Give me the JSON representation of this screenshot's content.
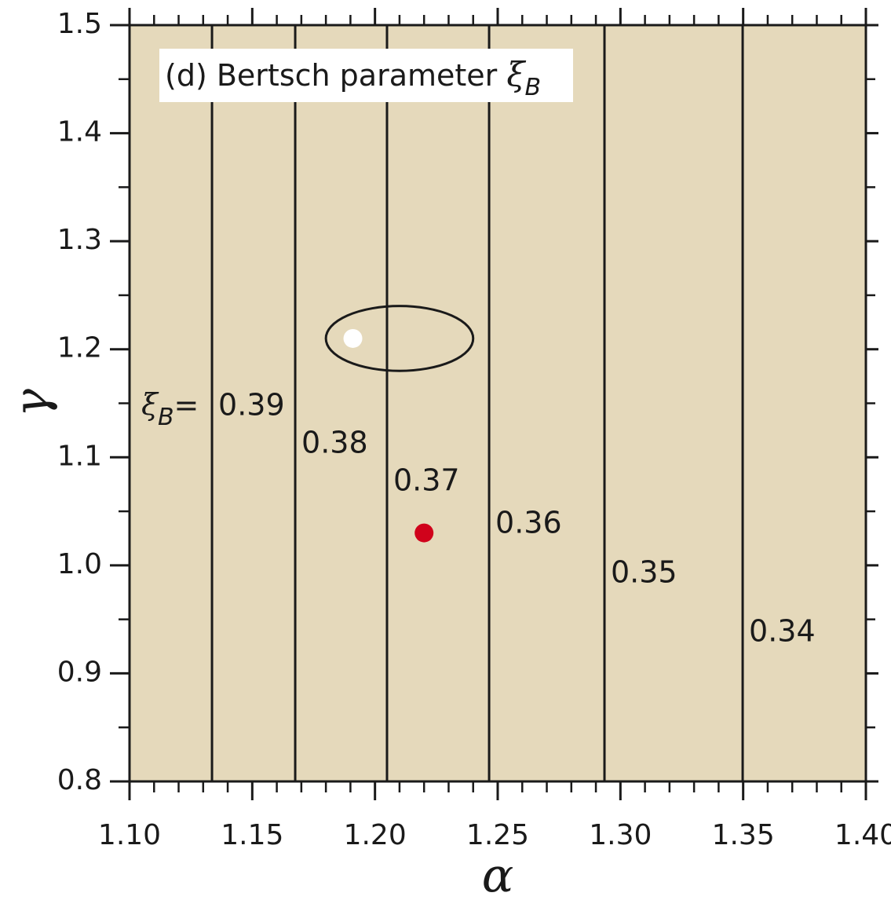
{
  "chart_data": {
    "type": "contour",
    "title": "(d) Bertsch parameter ",
    "title_symbol": "ξ",
    "title_subscript": "B",
    "xlabel": "α",
    "ylabel": "γ",
    "contour_prefix": {
      "symbol": "ξ",
      "subscript": "B",
      "eq": "="
    },
    "background": "#e5d9bb",
    "line_color": "#1a1a1a",
    "xlim": [
      1.1,
      1.4
    ],
    "ylim": [
      0.8,
      1.5
    ],
    "xticks": [
      {
        "value": 1.1,
        "label": "1.10"
      },
      1.15,
      {
        "value": 1.2,
        "label": "1.20"
      },
      1.25,
      {
        "value": 1.3,
        "label": "1.30"
      },
      1.35,
      {
        "value": 1.4,
        "label": "1.40"
      }
    ],
    "yticks": [
      0.8,
      0.9,
      {
        "value": 1,
        "label": "1.0"
      },
      1.1,
      1.2,
      1.3,
      1.4,
      1.5
    ],
    "contours": [
      {
        "level": 0.39,
        "alpha": 1.1336
      },
      {
        "level": 0.38,
        "alpha": 1.1675
      },
      {
        "level": 0.37,
        "alpha": 1.2049
      },
      {
        "level": 0.36,
        "alpha": 1.2465
      },
      {
        "level": 0.35,
        "alpha": 1.2935
      },
      {
        "level": 0.34,
        "alpha": 1.3498
      }
    ],
    "points": [
      {
        "alpha": 1.191,
        "gamma": 1.21,
        "color": "#ffffff"
      },
      {
        "alpha": 1.22,
        "gamma": 1.03,
        "color": "#d0021b"
      }
    ],
    "ellipse": {
      "alpha": 1.21,
      "gamma": 1.21,
      "d_alpha": 0.03,
      "d_gamma": 0.03
    }
  }
}
